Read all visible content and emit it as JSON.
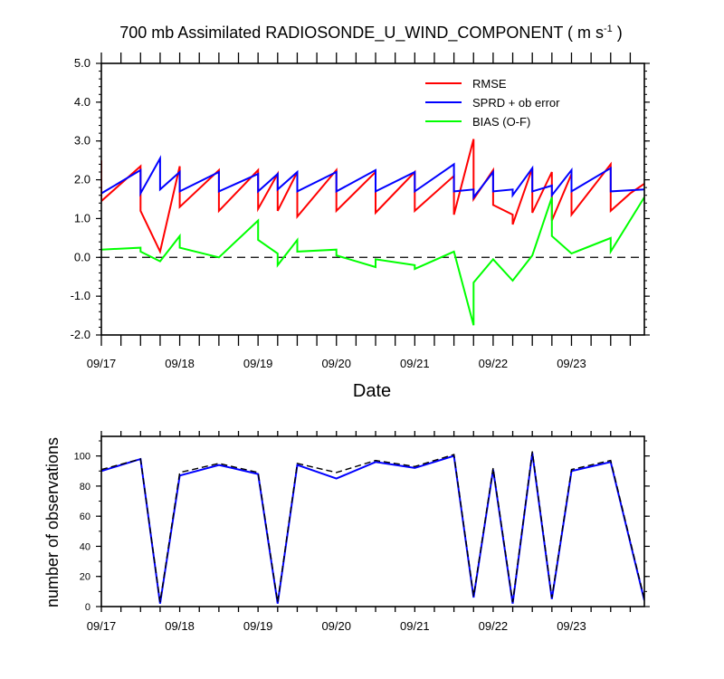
{
  "chart_data": [
    {
      "type": "line",
      "title_main": "700 mb Assimilated RADIOSONDE_U_WIND_COMPONENT ( m s",
      "title_sup": "-1",
      "title_end": " )",
      "xlabel": "Date",
      "ylabel": "",
      "xlim": [
        0,
        6.93
      ],
      "ylim": [
        -2.0,
        5.0
      ],
      "y_ticks": [
        "5.0",
        "4.0",
        "3.0",
        "2.0",
        "1.0",
        "0.0",
        "-1.0",
        "-2.0"
      ],
      "x_tick_labels": [
        "09/17",
        "09/18",
        "09/19",
        "09/20",
        "09/21",
        "09/22",
        "09/23"
      ],
      "x_tick_positions": [
        0,
        1,
        2,
        3,
        4,
        5,
        6
      ],
      "legend_position": "top-right",
      "zero_line": "dashed",
      "series": [
        {
          "name": "RMSE",
          "color": "#ff0000",
          "x": [
            0,
            0,
            0.5,
            0.5,
            0.75,
            1,
            1,
            1.5,
            1.5,
            2,
            2,
            2.25,
            2.25,
            2.5,
            2.5,
            3,
            3,
            3.5,
            3.5,
            4,
            4,
            4.5,
            4.5,
            4.75,
            4.75,
            5,
            5,
            5.25,
            5.25,
            5.5,
            5.5,
            5.75,
            5.75,
            6,
            6,
            6.5,
            6.5,
            6.75,
            6.93
          ],
          "y": [
            2.5,
            1.45,
            2.35,
            1.2,
            0.15,
            2.35,
            1.3,
            2.25,
            1.2,
            2.25,
            1.25,
            2.15,
            1.2,
            2.2,
            1.05,
            2.25,
            1.2,
            2.2,
            1.15,
            2.2,
            1.2,
            2.1,
            1.1,
            3.05,
            1.5,
            2.25,
            1.35,
            1.1,
            0.85,
            2.3,
            1.15,
            2.2,
            0.95,
            2.15,
            1.1,
            2.4,
            1.2,
            1.65,
            1.9
          ]
        },
        {
          "name": "SPRD + ob error",
          "color": "#0000ff",
          "x": [
            0,
            0.5,
            0.5,
            0.75,
            0.75,
            1,
            1,
            1.5,
            1.5,
            2,
            2,
            2.25,
            2.25,
            2.5,
            2.5,
            3,
            3,
            3.5,
            3.5,
            4,
            4,
            4.5,
            4.5,
            4.75,
            4.75,
            5,
            5,
            5.25,
            5.25,
            5.5,
            5.5,
            5.75,
            5.75,
            6,
            6,
            6.5,
            6.5,
            6.93
          ],
          "y": [
            1.65,
            2.25,
            1.65,
            2.55,
            1.75,
            2.2,
            1.7,
            2.2,
            1.7,
            2.15,
            1.7,
            2.15,
            1.75,
            2.2,
            1.7,
            2.2,
            1.7,
            2.25,
            1.7,
            2.2,
            1.7,
            2.4,
            1.7,
            1.75,
            1.55,
            2.2,
            1.7,
            1.75,
            1.6,
            2.3,
            1.7,
            1.85,
            1.6,
            2.25,
            1.7,
            2.3,
            1.7,
            1.75
          ]
        },
        {
          "name": "BIAS (O-F)",
          "color": "#00ff00",
          "x": [
            0,
            0.5,
            0.5,
            0.75,
            1,
            1,
            1.5,
            2,
            2,
            2.25,
            2.25,
            2.5,
            2.5,
            3,
            3,
            3.5,
            3.5,
            4,
            4,
            4.5,
            4.75,
            4.75,
            5,
            5.25,
            5.5,
            5.75,
            5.75,
            6,
            6.5,
            6.5,
            6.93
          ],
          "y": [
            0.2,
            0.25,
            0.15,
            -0.1,
            0.55,
            0.25,
            0.0,
            0.95,
            0.45,
            0.1,
            -0.2,
            0.45,
            0.15,
            0.2,
            0.05,
            -0.25,
            -0.05,
            -0.2,
            -0.3,
            0.15,
            -1.75,
            -0.65,
            -0.05,
            -0.6,
            0.05,
            1.55,
            0.55,
            0.1,
            0.5,
            0.15,
            1.55
          ]
        }
      ]
    },
    {
      "type": "line",
      "xlabel": "",
      "ylabel": "number of observations",
      "xlim": [
        0,
        6.93
      ],
      "ylim": [
        0,
        113
      ],
      "y_ticks": [
        "0",
        "20",
        "40",
        "60",
        "80",
        "100"
      ],
      "x_tick_labels": [
        "09/17",
        "09/18",
        "09/19",
        "09/20",
        "09/21",
        "09/22",
        "09/23"
      ],
      "x_tick_positions": [
        0,
        1,
        2,
        3,
        4,
        5,
        6
      ],
      "series": [
        {
          "color": "#0000ff",
          "style": "solid",
          "x": [
            0,
            0.5,
            0.75,
            1,
            1.5,
            2,
            2.25,
            2.5,
            3,
            3.5,
            4,
            4.5,
            4.75,
            5,
            5.25,
            5.5,
            5.75,
            6,
            6.5,
            6.93
          ],
          "y": [
            90,
            98,
            2,
            87,
            94,
            88,
            2,
            94,
            85,
            96,
            92,
            100,
            6,
            91,
            2,
            102,
            5,
            90,
            96,
            4
          ]
        },
        {
          "color": "#000000",
          "style": "dashed",
          "x": [
            0,
            0.5,
            0.75,
            1,
            1.5,
            2,
            2.25,
            2.5,
            3,
            3.5,
            4,
            4.5,
            4.75,
            5,
            5.25,
            5.5,
            5.75,
            6,
            6.5,
            6.93
          ],
          "y": [
            91,
            98,
            3,
            89,
            95,
            89,
            3,
            95,
            89,
            97,
            93,
            101,
            7,
            92,
            3,
            103,
            6,
            91,
            97,
            5
          ]
        }
      ]
    }
  ]
}
